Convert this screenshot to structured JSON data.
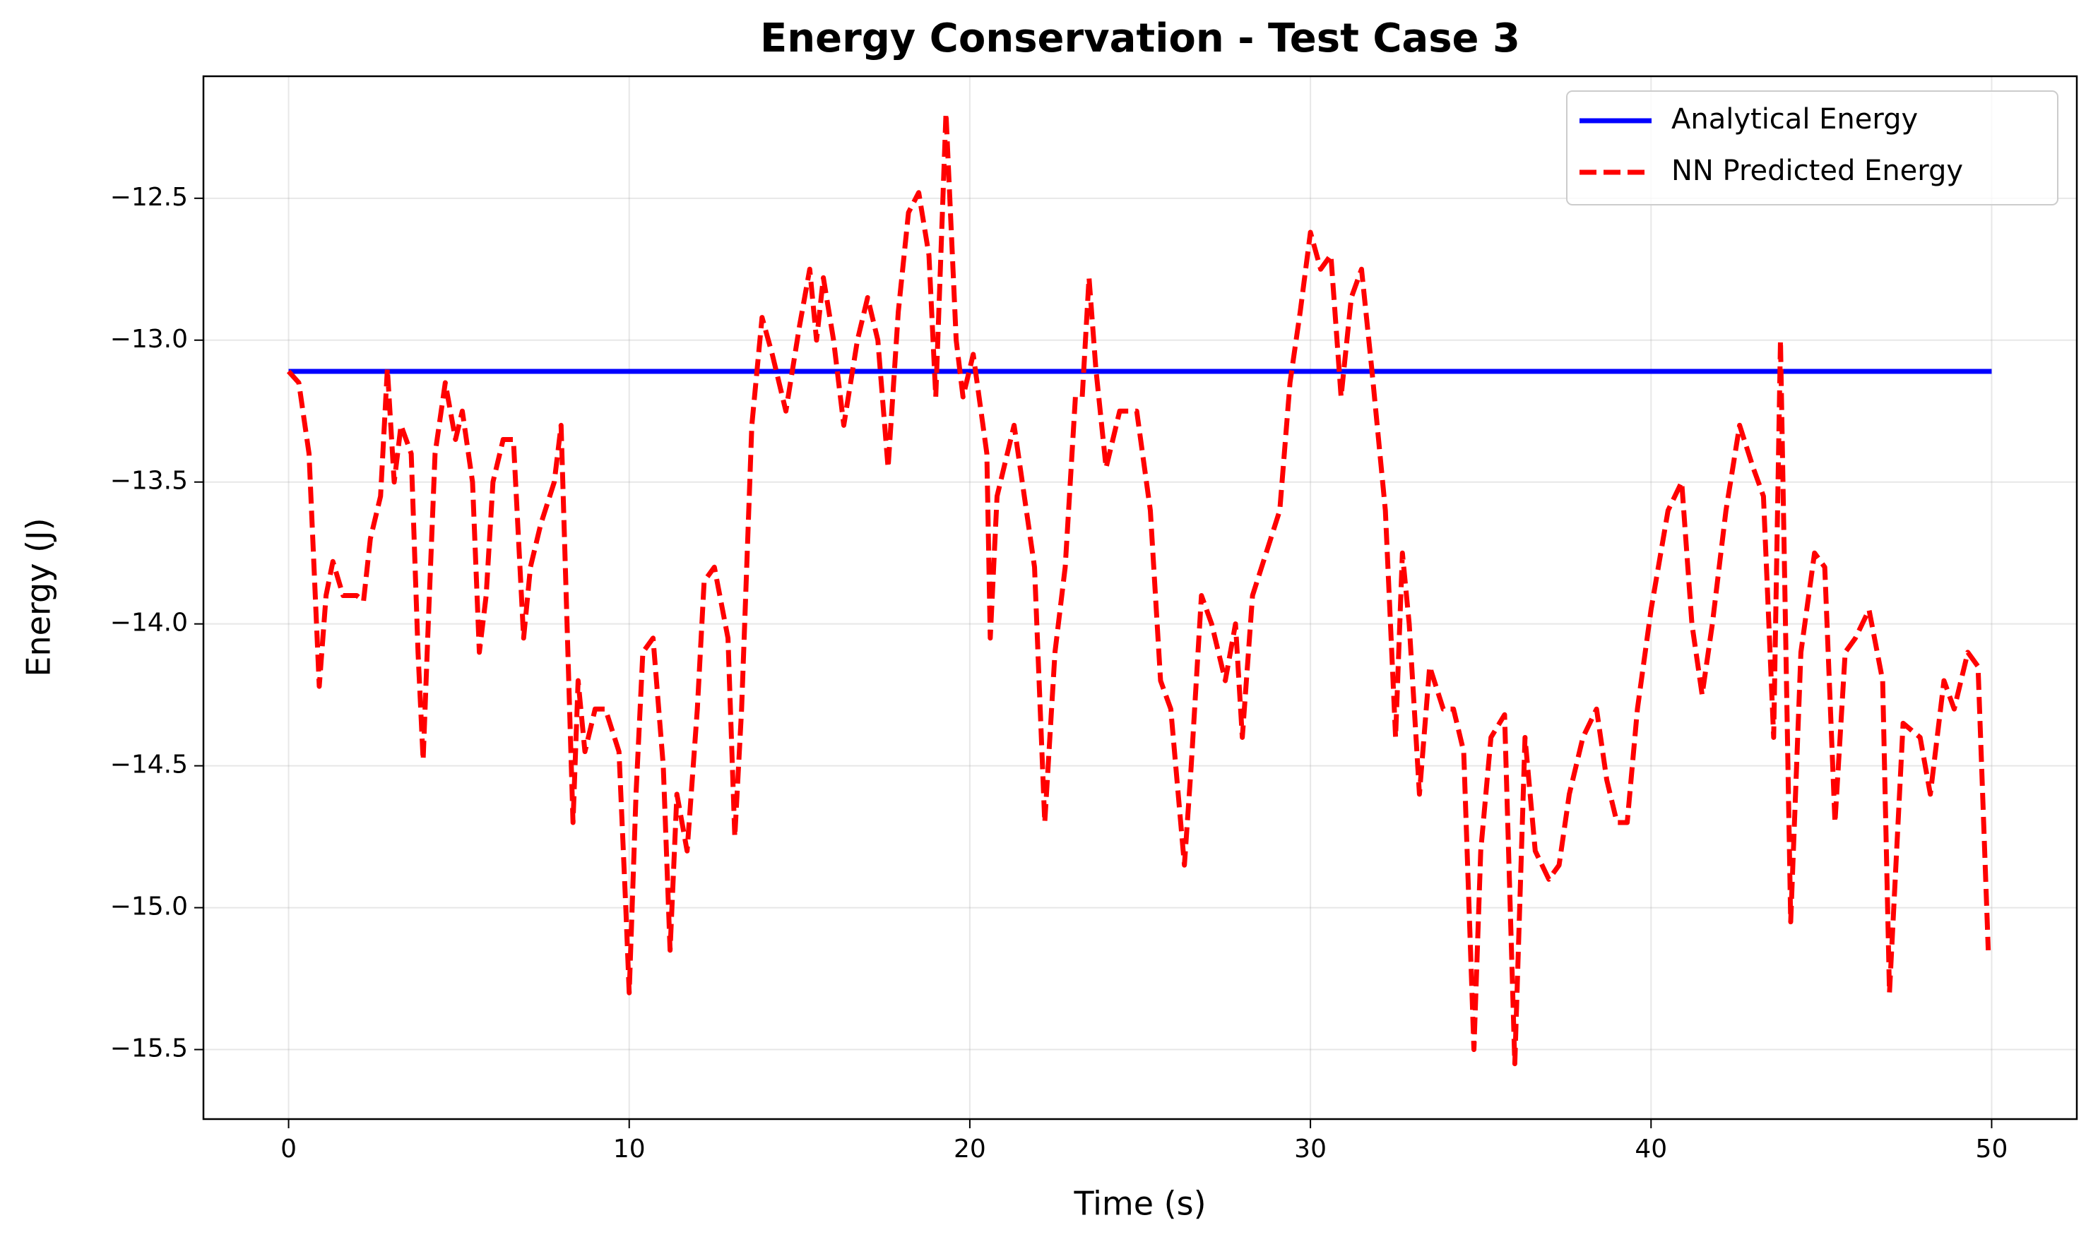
{
  "chart_data": {
    "type": "line",
    "title": "Energy Conservation - Test Case 3",
    "xlabel": "Time (s)",
    "ylabel": "Energy (J)",
    "xlim": [
      -2.5,
      52.5
    ],
    "ylim": [
      -15.745,
      -12.07
    ],
    "xticks": [
      0,
      10,
      20,
      30,
      40,
      50
    ],
    "yticks": [
      {
        "value": -15.5,
        "label": "−15.5"
      },
      {
        "value": -15.0,
        "label": "−15.0"
      },
      {
        "value": -14.5,
        "label": "−14.5"
      },
      {
        "value": -14.0,
        "label": "−14.0"
      },
      {
        "value": -13.5,
        "label": "−13.5"
      },
      {
        "value": -13.0,
        "label": "−13.0"
      },
      {
        "value": -12.5,
        "label": "−12.5"
      }
    ],
    "grid": true,
    "legend": "upper right",
    "series": [
      {
        "name": "Analytical Energy",
        "color": "#0000ff",
        "style": "solid",
        "x": [
          0,
          50
        ],
        "values": [
          -13.11,
          -13.11
        ]
      },
      {
        "name": "NN Predicted Energy",
        "color": "#ff0000",
        "style": "dashed",
        "x": [
          0,
          0.3,
          0.6,
          0.9,
          1.1,
          1.3,
          1.6,
          2.0,
          2.2,
          2.4,
          2.7,
          2.9,
          3.1,
          3.3,
          3.6,
          3.8,
          3.95,
          4.1,
          4.3,
          4.6,
          4.9,
          5.1,
          5.4,
          5.6,
          5.8,
          6.0,
          6.3,
          6.6,
          6.9,
          7.1,
          7.4,
          7.8,
          8.0,
          8.2,
          8.35,
          8.5,
          8.7,
          9.0,
          9.3,
          9.7,
          9.9,
          10.0,
          10.2,
          10.4,
          10.7,
          11.0,
          11.2,
          11.4,
          11.7,
          12.0,
          12.2,
          12.5,
          12.9,
          13.1,
          13.3,
          13.6,
          13.9,
          14.2,
          14.6,
          15.0,
          15.3,
          15.5,
          15.7,
          16.0,
          16.3,
          16.7,
          17.0,
          17.3,
          17.6,
          17.9,
          18.2,
          18.5,
          18.8,
          19.0,
          19.3,
          19.6,
          19.8,
          20.1,
          20.5,
          20.6,
          20.8,
          21.0,
          21.3,
          21.6,
          21.9,
          22.2,
          22.5,
          22.8,
          23.1,
          23.3,
          23.5,
          23.7,
          24.0,
          24.4,
          24.9,
          25.3,
          25.6,
          25.9,
          26.3,
          26.5,
          26.8,
          27.1,
          27.5,
          27.8,
          28.0,
          28.3,
          28.7,
          29.1,
          29.4,
          29.7,
          30.0,
          30.3,
          30.6,
          30.9,
          31.2,
          31.5,
          31.8,
          32.2,
          32.5,
          32.7,
          32.9,
          33.2,
          33.5,
          33.9,
          34.2,
          34.5,
          34.8,
          35.0,
          35.3,
          35.7,
          36.0,
          36.3,
          36.6,
          37.0,
          37.3,
          37.6,
          38.0,
          38.4,
          38.7,
          39.0,
          39.3,
          39.6,
          40.0,
          40.5,
          40.9,
          41.2,
          41.5,
          41.8,
          42.2,
          42.6,
          43.0,
          43.3,
          43.6,
          43.8,
          44.1,
          44.4,
          44.8,
          45.1,
          45.4,
          45.7,
          46.0,
          46.4,
          46.8,
          47.0,
          47.4,
          47.9,
          48.2,
          48.6,
          48.9,
          49.3,
          49.6,
          49.9
        ],
        "values": [
          -13.11,
          -13.15,
          -13.4,
          -14.22,
          -13.9,
          -13.78,
          -13.9,
          -13.9,
          -13.92,
          -13.7,
          -13.55,
          -13.1,
          -13.5,
          -13.3,
          -13.4,
          -14.1,
          -14.48,
          -14.0,
          -13.4,
          -13.15,
          -13.35,
          -13.25,
          -13.5,
          -14.1,
          -13.9,
          -13.5,
          -13.35,
          -13.35,
          -14.05,
          -13.8,
          -13.65,
          -13.5,
          -13.3,
          -14.1,
          -14.7,
          -14.2,
          -14.45,
          -14.3,
          -14.3,
          -14.45,
          -15.0,
          -15.3,
          -14.6,
          -14.1,
          -14.05,
          -14.5,
          -15.15,
          -14.6,
          -14.8,
          -14.3,
          -13.85,
          -13.8,
          -14.05,
          -14.75,
          -14.3,
          -13.3,
          -12.92,
          -13.05,
          -13.25,
          -12.95,
          -12.75,
          -13.0,
          -12.78,
          -13.0,
          -13.3,
          -13.0,
          -12.85,
          -13.0,
          -13.45,
          -12.9,
          -12.55,
          -12.48,
          -12.7,
          -13.2,
          -12.2,
          -13.0,
          -13.2,
          -13.05,
          -13.4,
          -14.05,
          -13.55,
          -13.45,
          -13.3,
          -13.55,
          -13.8,
          -14.7,
          -14.1,
          -13.8,
          -13.2,
          -13.2,
          -12.78,
          -13.1,
          -13.45,
          -13.25,
          -13.25,
          -13.6,
          -14.2,
          -14.3,
          -14.85,
          -14.5,
          -13.9,
          -14.0,
          -14.2,
          -14.0,
          -14.4,
          -13.9,
          -13.75,
          -13.6,
          -13.15,
          -12.9,
          -12.62,
          -12.75,
          -12.7,
          -13.2,
          -12.85,
          -12.75,
          -13.1,
          -13.6,
          -14.4,
          -13.75,
          -14.0,
          -14.6,
          -14.15,
          -14.3,
          -14.3,
          -14.45,
          -15.5,
          -14.8,
          -14.4,
          -14.32,
          -15.55,
          -14.4,
          -14.8,
          -14.9,
          -14.85,
          -14.6,
          -14.4,
          -14.3,
          -14.55,
          -14.7,
          -14.7,
          -14.3,
          -13.95,
          -13.6,
          -13.5,
          -14.0,
          -14.25,
          -14.0,
          -13.6,
          -13.3,
          -13.45,
          -13.55,
          -14.4,
          -13.0,
          -15.05,
          -14.1,
          -13.75,
          -13.8,
          -14.7,
          -14.1,
          -14.05,
          -13.95,
          -14.2,
          -15.3,
          -14.35,
          -14.4,
          -14.6,
          -14.2,
          -14.3,
          -14.1,
          -14.15,
          -15.15
        ]
      }
    ]
  }
}
